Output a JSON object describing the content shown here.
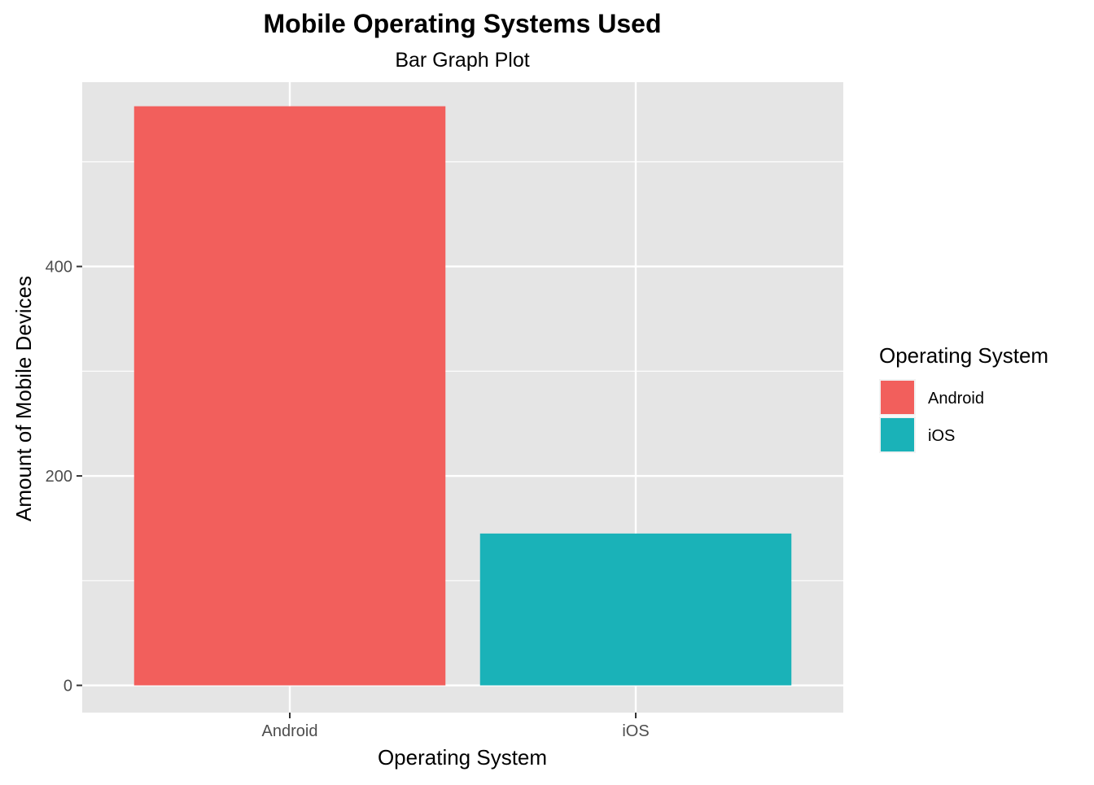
{
  "chart_data": {
    "type": "bar",
    "title": "Mobile Operating Systems Used",
    "subtitle": "Bar Graph Plot",
    "xlabel": "Operating System",
    "ylabel": "Amount of Mobile Devices",
    "categories": [
      "Android",
      "iOS"
    ],
    "values": [
      553,
      145
    ],
    "colors": [
      "#F25F5C",
      "#1AB2B8"
    ],
    "ylim": [
      -26,
      576
    ],
    "yticks": [
      0,
      200,
      400
    ],
    "yticks_minor": [
      100,
      300,
      500
    ],
    "grid": true,
    "panel_background": "#E5E5E5",
    "grid_color": "#FFFFFF",
    "legend": {
      "title": "Operating System",
      "position": "right",
      "entries": [
        "Android",
        "iOS"
      ]
    }
  }
}
